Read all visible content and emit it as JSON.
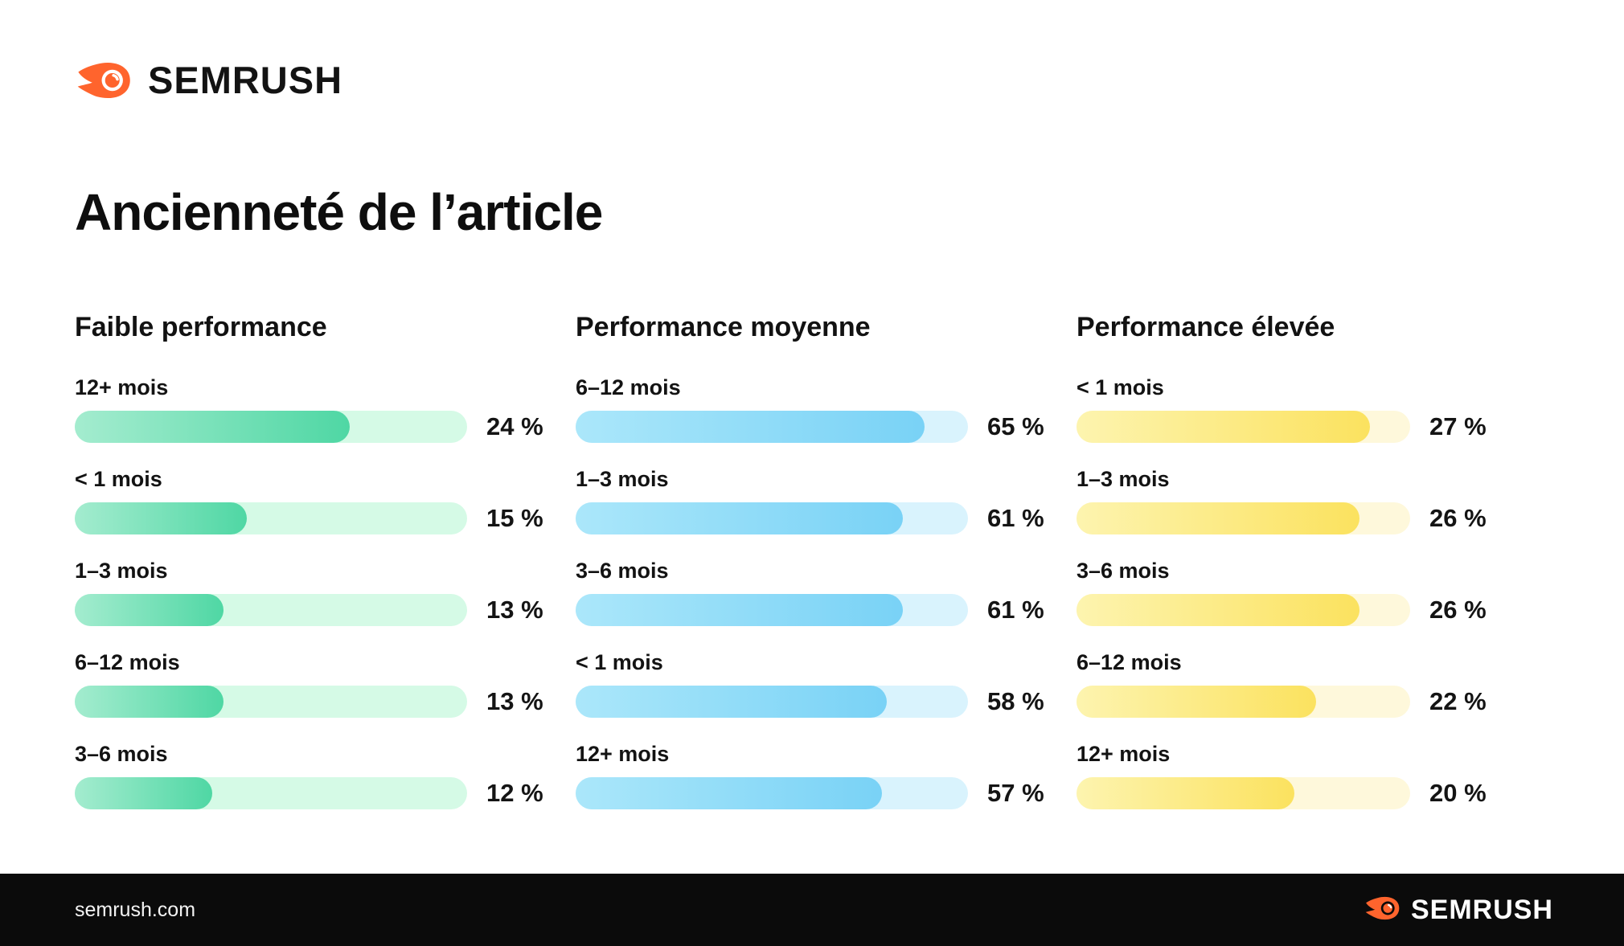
{
  "header": {
    "brand": "SEMRUSH",
    "logo_icon": "semrush-comet-icon"
  },
  "title": "Ancienneté de l’article",
  "columns": [
    {
      "title": "Faible performance",
      "theme": "green",
      "max_fill_pct": 70,
      "rows": [
        {
          "label": "12+ mois",
          "value": 24,
          "value_label": "24 %"
        },
        {
          "label": "< 1 mois",
          "value": 15,
          "value_label": "15 %"
        },
        {
          "label": "1–3 mois",
          "value": 13,
          "value_label": "13 %"
        },
        {
          "label": "6–12 mois",
          "value": 13,
          "value_label": "13 %"
        },
        {
          "label": "3–6 mois",
          "value": 12,
          "value_label": "12 %"
        }
      ]
    },
    {
      "title": "Performance moyenne",
      "theme": "blue",
      "max_fill_pct": 89,
      "rows": [
        {
          "label": "6–12 mois",
          "value": 65,
          "value_label": "65 %"
        },
        {
          "label": "1–3 mois",
          "value": 61,
          "value_label": "61 %"
        },
        {
          "label": "3–6 mois",
          "value": 61,
          "value_label": "61 %"
        },
        {
          "label": "< 1 mois",
          "value": 58,
          "value_label": "58 %"
        },
        {
          "label": "12+ mois",
          "value": 57,
          "value_label": "57 %"
        }
      ]
    },
    {
      "title": "Performance élevée",
      "theme": "yellow",
      "max_fill_pct": 88,
      "rows": [
        {
          "label": "< 1 mois",
          "value": 27,
          "value_label": "27 %"
        },
        {
          "label": "1–3 mois",
          "value": 26,
          "value_label": "26 %"
        },
        {
          "label": "3–6 mois",
          "value": 26,
          "value_label": "26 %"
        },
        {
          "label": "6–12 mois",
          "value": 22,
          "value_label": "22 %"
        },
        {
          "label": "12+ mois",
          "value": 20,
          "value_label": "20 %"
        }
      ]
    }
  ],
  "footer": {
    "site": "semrush.com",
    "brand": "SEMRUSH"
  },
  "colors": {
    "orange_brand": "#ff642d",
    "green_fill_start": "#a4eccf",
    "green_fill_end": "#4fd7a4",
    "green_track": "#d5fae6",
    "blue_fill_start": "#abe7fa",
    "blue_fill_end": "#79d2f6",
    "blue_track": "#d9f3fd",
    "yellow_fill_start": "#fdf4af",
    "yellow_fill_end": "#fbe25f",
    "yellow_track": "#fef8db",
    "text": "#141414",
    "footer_bg": "#0b0b0b"
  },
  "chart_data": [
    {
      "type": "bar",
      "orientation": "horizontal",
      "title": "Faible performance",
      "unit": "%",
      "categories": [
        "12+ mois",
        "< 1 mois",
        "1–3 mois",
        "6–12 mois",
        "3–6 mois"
      ],
      "values": [
        24,
        15,
        13,
        13,
        12
      ],
      "color_theme": "green",
      "value_labels": [
        "24 %",
        "15 %",
        "13 %",
        "13 %",
        "12 %"
      ]
    },
    {
      "type": "bar",
      "orientation": "horizontal",
      "title": "Performance moyenne",
      "unit": "%",
      "categories": [
        "6–12 mois",
        "1–3 mois",
        "3–6 mois",
        "< 1 mois",
        "12+ mois"
      ],
      "values": [
        65,
        61,
        61,
        58,
        57
      ],
      "color_theme": "blue",
      "value_labels": [
        "65 %",
        "61 %",
        "61 %",
        "58 %",
        "57 %"
      ]
    },
    {
      "type": "bar",
      "orientation": "horizontal",
      "title": "Performance élevée",
      "unit": "%",
      "categories": [
        "< 1 mois",
        "1–3 mois",
        "3–6 mois",
        "6–12 mois",
        "12+ mois"
      ],
      "values": [
        27,
        26,
        26,
        22,
        20
      ],
      "color_theme": "yellow",
      "value_labels": [
        "27 %",
        "26 %",
        "26 %",
        "22 %",
        "20 %"
      ]
    }
  ]
}
